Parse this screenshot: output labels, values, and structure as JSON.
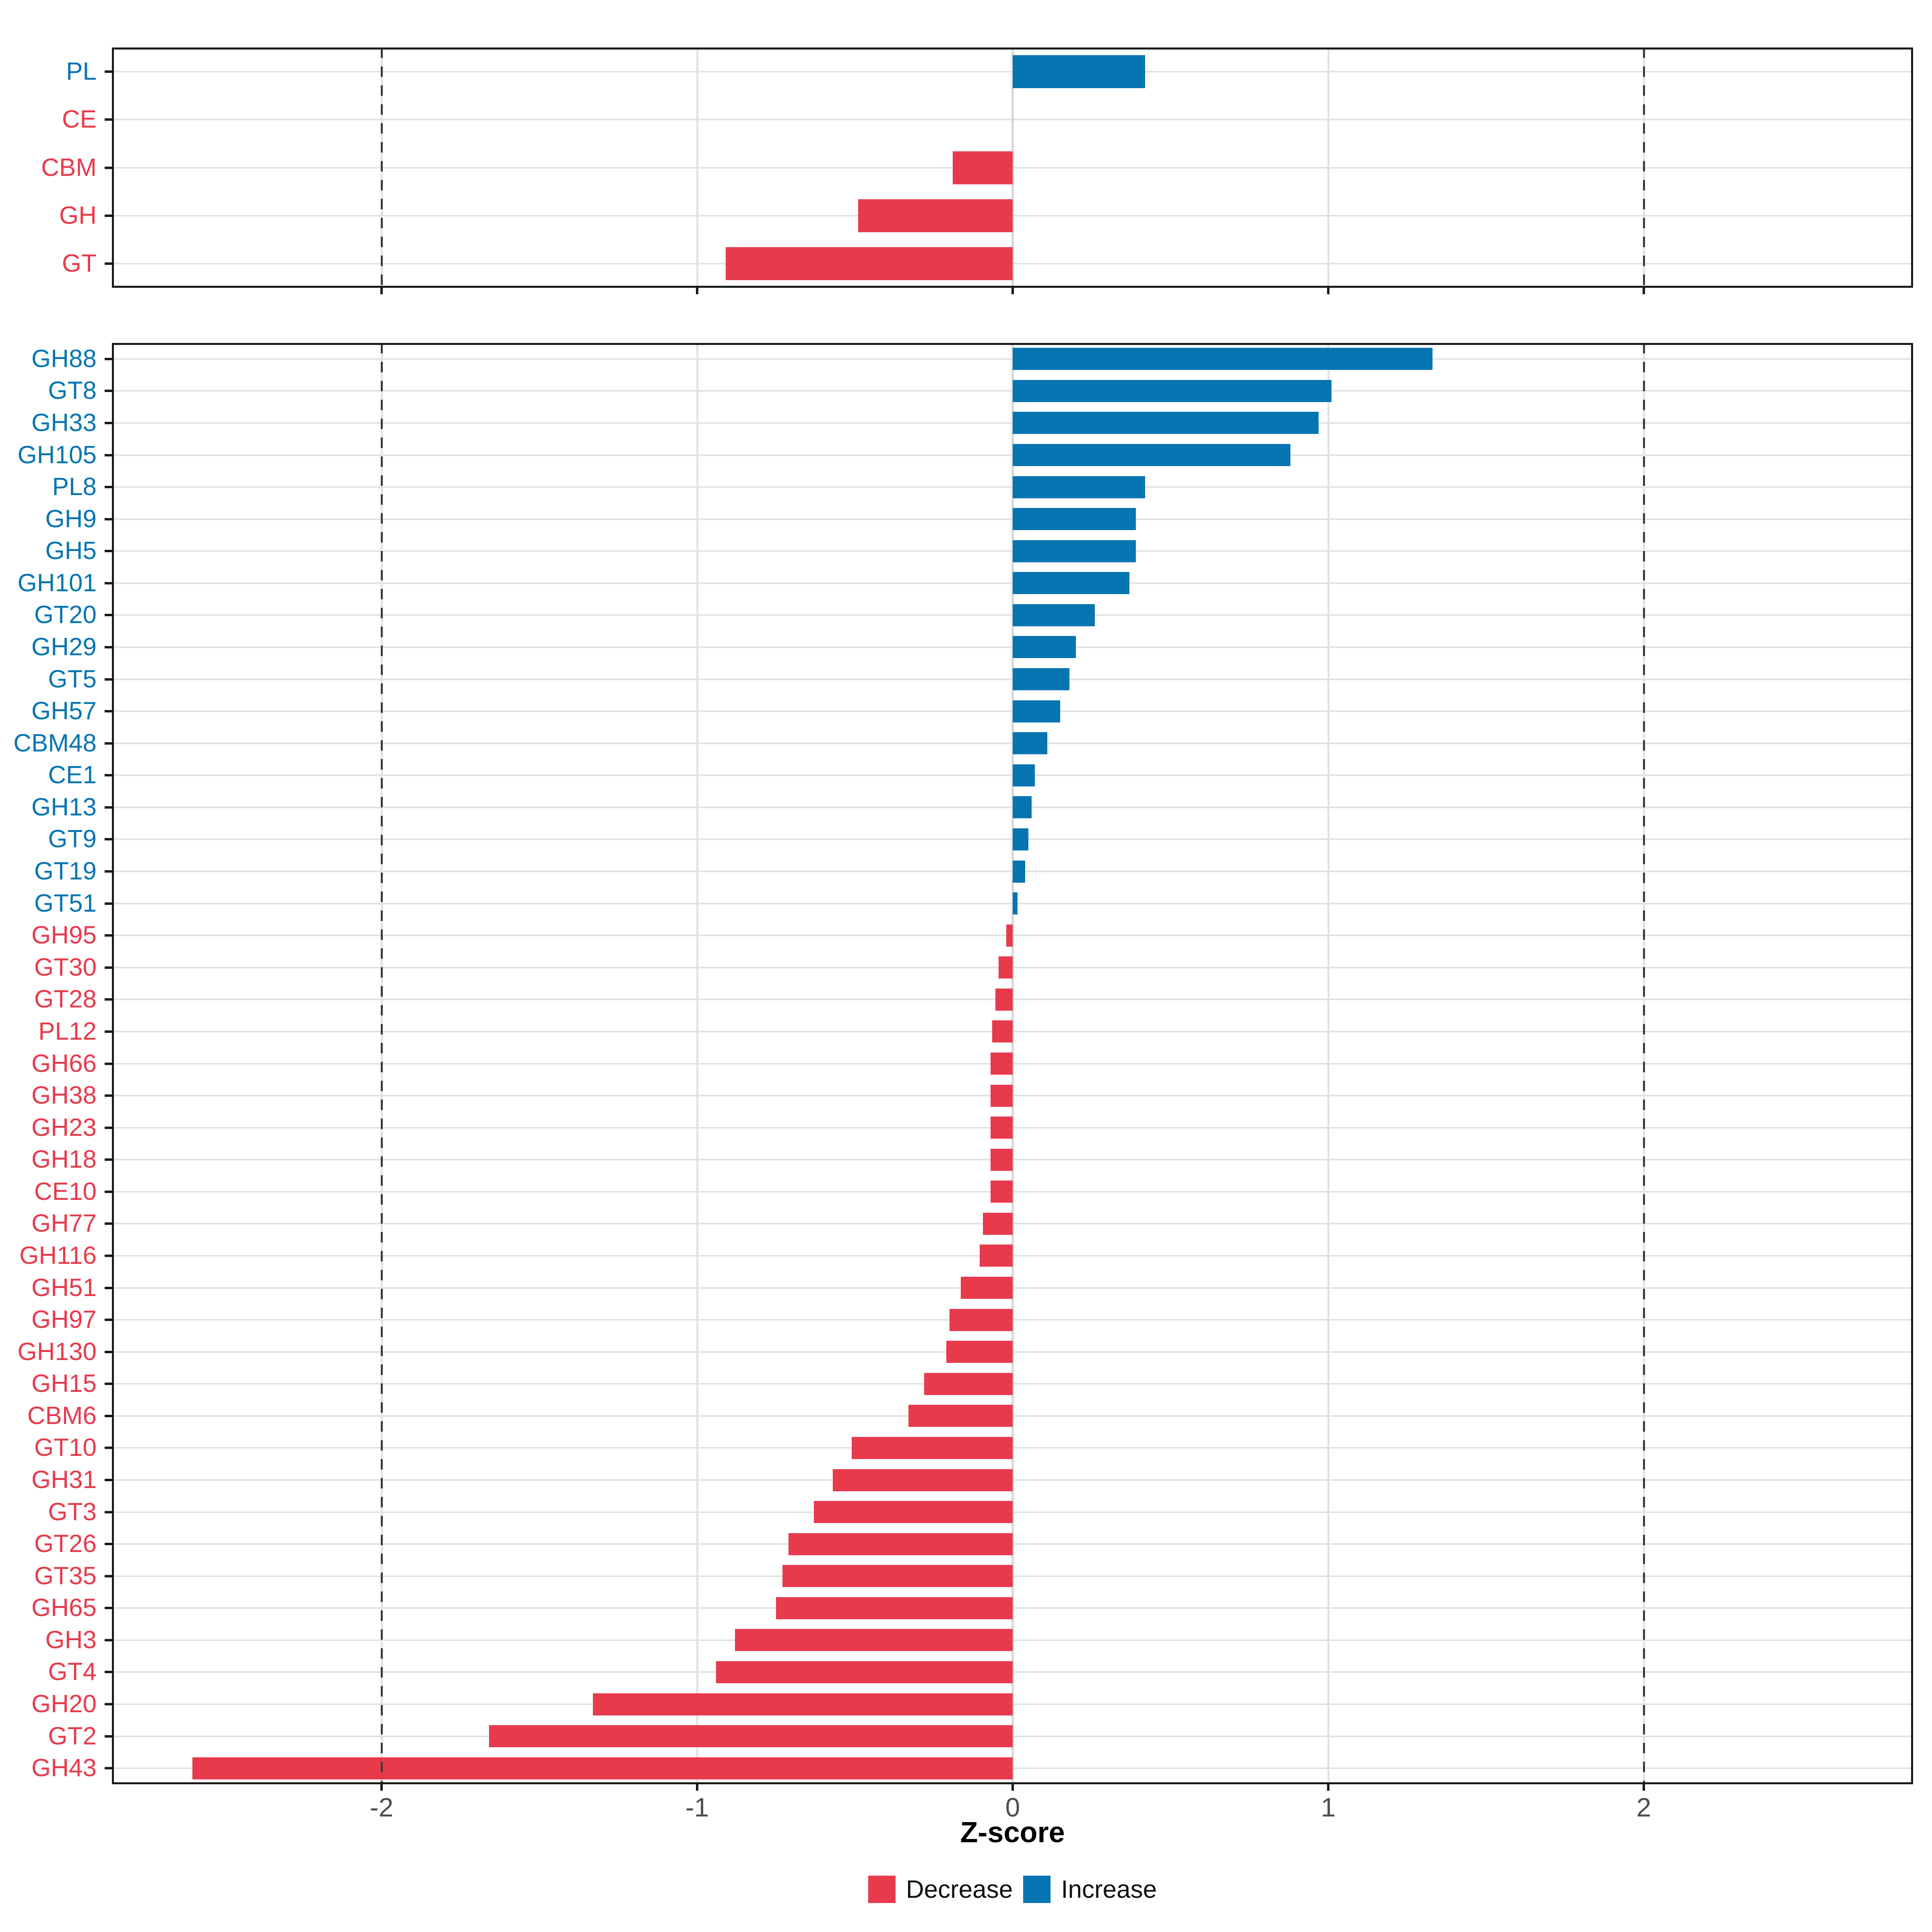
{
  "chart_data": {
    "type": "bar",
    "orientation": "horizontal",
    "xlabel": "Z-score",
    "x_ticks": [
      -2,
      -1,
      0,
      1,
      2
    ],
    "xlim": [
      -2.85,
      2.85
    ],
    "dashed_guides_at": [
      -2,
      2
    ],
    "grid": "on",
    "colors": {
      "decrease": "#E73B4C",
      "increase": "#0775B2"
    },
    "legend": {
      "position": "bottom",
      "items": [
        {
          "label": "Decrease",
          "key": "decrease"
        },
        {
          "label": "Increase",
          "key": "increase"
        }
      ]
    },
    "panels": [
      {
        "name": "cazyme-class-summary",
        "rows": [
          {
            "label": "PL",
            "value": 0.42,
            "dir": "increase"
          },
          {
            "label": "CE",
            "value": 0.0,
            "dir": "decrease"
          },
          {
            "label": "CBM",
            "value": -0.19,
            "dir": "decrease"
          },
          {
            "label": "GH",
            "value": -0.49,
            "dir": "decrease"
          },
          {
            "label": "GT",
            "value": -0.91,
            "dir": "decrease"
          }
        ]
      },
      {
        "name": "cazyme-family-detail",
        "rows": [
          {
            "label": "GH88",
            "value": 1.33,
            "dir": "increase"
          },
          {
            "label": "GT8",
            "value": 1.01,
            "dir": "increase"
          },
          {
            "label": "GH33",
            "value": 0.97,
            "dir": "increase"
          },
          {
            "label": "GH105",
            "value": 0.88,
            "dir": "increase"
          },
          {
            "label": "PL8",
            "value": 0.42,
            "dir": "increase"
          },
          {
            "label": "GH9",
            "value": 0.39,
            "dir": "increase"
          },
          {
            "label": "GH5",
            "value": 0.39,
            "dir": "increase"
          },
          {
            "label": "GH101",
            "value": 0.37,
            "dir": "increase"
          },
          {
            "label": "GT20",
            "value": 0.26,
            "dir": "increase"
          },
          {
            "label": "GH29",
            "value": 0.2,
            "dir": "increase"
          },
          {
            "label": "GT5",
            "value": 0.18,
            "dir": "increase"
          },
          {
            "label": "GH57",
            "value": 0.15,
            "dir": "increase"
          },
          {
            "label": "CBM48",
            "value": 0.11,
            "dir": "increase"
          },
          {
            "label": "CE1",
            "value": 0.07,
            "dir": "increase"
          },
          {
            "label": "GH13",
            "value": 0.06,
            "dir": "increase"
          },
          {
            "label": "GT9",
            "value": 0.05,
            "dir": "increase"
          },
          {
            "label": "GT19",
            "value": 0.04,
            "dir": "increase"
          },
          {
            "label": "GT51",
            "value": 0.015,
            "dir": "increase"
          },
          {
            "label": "GH95",
            "value": -0.02,
            "dir": "decrease"
          },
          {
            "label": "GT30",
            "value": -0.045,
            "dir": "decrease"
          },
          {
            "label": "GT28",
            "value": -0.055,
            "dir": "decrease"
          },
          {
            "label": "PL12",
            "value": -0.065,
            "dir": "decrease"
          },
          {
            "label": "GH66",
            "value": -0.07,
            "dir": "decrease"
          },
          {
            "label": "GH38",
            "value": -0.07,
            "dir": "decrease"
          },
          {
            "label": "GH23",
            "value": -0.07,
            "dir": "decrease"
          },
          {
            "label": "GH18",
            "value": -0.07,
            "dir": "decrease"
          },
          {
            "label": "CE10",
            "value": -0.07,
            "dir": "decrease"
          },
          {
            "label": "GH77",
            "value": -0.095,
            "dir": "decrease"
          },
          {
            "label": "GH116",
            "value": -0.105,
            "dir": "decrease"
          },
          {
            "label": "GH51",
            "value": -0.165,
            "dir": "decrease"
          },
          {
            "label": "GH97",
            "value": -0.2,
            "dir": "decrease"
          },
          {
            "label": "GH130",
            "value": -0.21,
            "dir": "decrease"
          },
          {
            "label": "GH15",
            "value": -0.28,
            "dir": "decrease"
          },
          {
            "label": "CBM6",
            "value": -0.33,
            "dir": "decrease"
          },
          {
            "label": "GT10",
            "value": -0.51,
            "dir": "decrease"
          },
          {
            "label": "GH31",
            "value": -0.57,
            "dir": "decrease"
          },
          {
            "label": "GT3",
            "value": -0.63,
            "dir": "decrease"
          },
          {
            "label": "GT26",
            "value": -0.71,
            "dir": "decrease"
          },
          {
            "label": "GT35",
            "value": -0.73,
            "dir": "decrease"
          },
          {
            "label": "GH65",
            "value": -0.75,
            "dir": "decrease"
          },
          {
            "label": "GH3",
            "value": -0.88,
            "dir": "decrease"
          },
          {
            "label": "GT4",
            "value": -0.94,
            "dir": "decrease"
          },
          {
            "label": "GH20",
            "value": -1.33,
            "dir": "decrease"
          },
          {
            "label": "GT2",
            "value": -1.66,
            "dir": "decrease"
          },
          {
            "label": "GH43",
            "value": -2.6,
            "dir": "decrease"
          }
        ]
      }
    ]
  }
}
